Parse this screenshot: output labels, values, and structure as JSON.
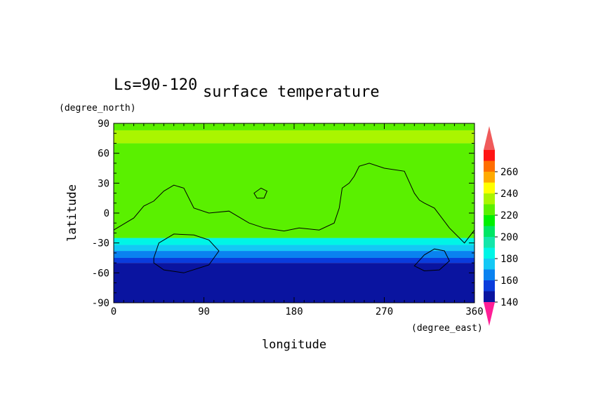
{
  "chart_data": {
    "type": "heatmap",
    "title": "surface temperature",
    "subtitle": "Ls=90-120",
    "xlabel": "longitude",
    "ylabel": "latitude",
    "x_unit": "(degree_east)",
    "y_unit": "(degree_north)",
    "xlim": [
      0,
      360
    ],
    "ylim": [
      -90,
      90
    ],
    "x_ticks": [
      0,
      90,
      180,
      270,
      360
    ],
    "y_ticks": [
      90,
      60,
      30,
      0,
      -30,
      -60,
      -90
    ],
    "colorbar": {
      "levels": [
        140,
        150,
        160,
        170,
        180,
        190,
        200,
        210,
        220,
        230,
        240,
        250,
        260,
        270
      ],
      "labels": [
        140,
        160,
        180,
        200,
        220,
        240,
        260
      ],
      "colors": [
        "#0a14a0",
        "#0a3cdc",
        "#0a82f0",
        "#14c8f5",
        "#00f5e6",
        "#14e6aa",
        "#00e664",
        "#00f000",
        "#5af000",
        "#aaf500",
        "#ffff00",
        "#ffaa00",
        "#ff6e00",
        "#ff1414"
      ],
      "under_color": "#ff1e96",
      "over_color": "#f05a5a"
    },
    "bands": [
      {
        "lat_min": -90,
        "lat_max": -50,
        "value": 140
      },
      {
        "lat_min": -50,
        "lat_max": -45,
        "value": 150
      },
      {
        "lat_min": -45,
        "lat_max": -38,
        "value": 160
      },
      {
        "lat_min": -38,
        "lat_max": -32,
        "value": 170
      },
      {
        "lat_min": -32,
        "lat_max": -25,
        "value": 180
      },
      {
        "lat_min": -25,
        "lat_max": 70,
        "value": 220
      },
      {
        "lat_min": 70,
        "lat_max": 83,
        "value": 230
      },
      {
        "lat_min": 83,
        "lat_max": 90,
        "value": 220
      }
    ],
    "coastline": {
      "main": [
        [
          0,
          -17
        ],
        [
          20,
          -5
        ],
        [
          30,
          7
        ],
        [
          40,
          12
        ],
        [
          50,
          22
        ],
        [
          60,
          28
        ],
        [
          70,
          25
        ],
        [
          80,
          5
        ],
        [
          95,
          0
        ],
        [
          115,
          2
        ],
        [
          135,
          -10
        ],
        [
          150,
          -15
        ],
        [
          170,
          -18
        ],
        [
          185,
          -15
        ],
        [
          205,
          -17
        ],
        [
          220,
          -10
        ],
        [
          225,
          5
        ],
        [
          228,
          25
        ],
        [
          235,
          30
        ],
        [
          240,
          37
        ],
        [
          245,
          47
        ],
        [
          255,
          50
        ],
        [
          270,
          45
        ],
        [
          290,
          42
        ],
        [
          300,
          20
        ],
        [
          305,
          13
        ],
        [
          310,
          10
        ],
        [
          320,
          5
        ],
        [
          335,
          -15
        ],
        [
          350,
          -30
        ],
        [
          360,
          -17
        ]
      ],
      "closed": [
        [
          [
            140,
            20
          ],
          [
            147,
            25
          ],
          [
            153,
            22
          ],
          [
            150,
            15
          ],
          [
            143,
            15
          ]
        ],
        [
          [
            40,
            -45
          ],
          [
            45,
            -30
          ],
          [
            60,
            -21
          ],
          [
            80,
            -22
          ],
          [
            95,
            -27
          ],
          [
            105,
            -38
          ],
          [
            95,
            -52
          ],
          [
            70,
            -60
          ],
          [
            50,
            -57
          ],
          [
            40,
            -50
          ]
        ],
        [
          [
            300,
            -53
          ],
          [
            310,
            -42
          ],
          [
            320,
            -36
          ],
          [
            330,
            -38
          ],
          [
            335,
            -48
          ],
          [
            325,
            -57
          ],
          [
            310,
            -58
          ]
        ]
      ]
    }
  }
}
